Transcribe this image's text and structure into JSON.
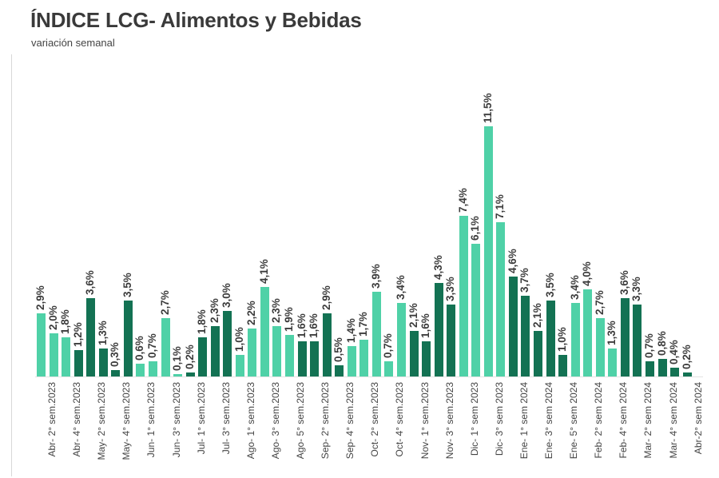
{
  "header": {
    "title": "ÍNDICE LCG- Alimentos y Bebidas",
    "subtitle": "variación semanal"
  },
  "colors": {
    "light": "#4fd1a7",
    "dark": "#137253",
    "label": "#3c3c3c"
  },
  "chart_data": {
    "type": "bar",
    "title": "ÍNDICE LCG- Alimentos y Bebidas",
    "subtitle": "variación semanal",
    "xlabel": "",
    "ylabel": "",
    "ylim": [
      0,
      12
    ],
    "grid": false,
    "legend": "none",
    "value_format": "percent, comma decimal",
    "categories_labeled": [
      "Abr- 2° sem.2023",
      "Abr- 4° sem.2023",
      "May- 2° sem.2023",
      "May- 4° sem.2023",
      "Jun- 1° sem.2023",
      "Jun- 3° sem.2023",
      "Jul- 1° sem.2023",
      "Jul- 3° sem.2023",
      "Ago- 1° sem.2023",
      "Ago- 3° sem.2023",
      "Ago- 5° sem.2023",
      "Sep- 2° sem.2023",
      "Sep- 4° sem.2023",
      "Oct- 2° sem.2023",
      "Oct- 4° sem.2023",
      "Nov- 1° sem.2023",
      "Nov- 3° sem.2023",
      "Dic- 1° sem 2023",
      "Dic- 3° sem 2023",
      "Ene- 1° sem 2024",
      "Ene- 3° sem 2024",
      "Ene- 5° sem 2024",
      "Feb- 2° sem 2024",
      "Feb- 4° sem 2024",
      "Mar- 2° sem 2024",
      "Mar- 4° sem 2024",
      "Abr-2° sem 2024"
    ],
    "values": [
      2.9,
      2.0,
      1.8,
      1.2,
      3.6,
      1.3,
      0.3,
      3.5,
      0.6,
      0.7,
      2.7,
      0.1,
      0.2,
      1.8,
      2.3,
      3.0,
      1.0,
      2.2,
      4.1,
      2.3,
      1.9,
      1.6,
      1.6,
      2.9,
      0.5,
      1.4,
      1.7,
      3.9,
      0.7,
      3.4,
      2.1,
      1.6,
      4.3,
      3.3,
      7.4,
      6.1,
      11.5,
      7.1,
      4.6,
      3.7,
      2.1,
      3.5,
      1.0,
      3.4,
      4.0,
      2.7,
      1.3,
      3.6,
      3.3,
      0.7,
      0.8,
      0.4,
      0.2
    ],
    "value_labels": [
      "2,9%",
      "2,0%",
      "1,8%",
      "1,2%",
      "3,6%",
      "1,3%",
      "0,3%",
      "3,5%",
      "0,6%",
      "0,7%",
      "2,7%",
      "0,1%",
      "0,2%",
      "1,8%",
      "2,3%",
      "3,0%",
      "1,0%",
      "2,2%",
      "4,1%",
      "2,3%",
      "1,9%",
      "1,6%",
      "1,6%",
      "2,9%",
      "0,5%",
      "1,4%",
      "1,7%",
      "3,9%",
      "0,7%",
      "3,4%",
      "2,1%",
      "1,6%",
      "4,3%",
      "3,3%",
      "7,4%",
      "6,1%",
      "11,5%",
      "7,1%",
      "4,6%",
      "3,7%",
      "2,1%",
      "3,5%",
      "1,0%",
      "3,4%",
      "4,0%",
      "2,7%",
      "1,3%",
      "3,6%",
      "3,3%",
      "0,7%",
      "0,8%",
      "0,4%",
      "0,2%"
    ],
    "bar_shade": [
      "L",
      "L",
      "L",
      "D",
      "D",
      "D",
      "D",
      "D",
      "L",
      "L",
      "L",
      "L",
      "D",
      "D",
      "D",
      "D",
      "L",
      "L",
      "L",
      "L",
      "L",
      "D",
      "D",
      "D",
      "D",
      "L",
      "L",
      "L",
      "L",
      "L",
      "D",
      "D",
      "D",
      "D",
      "L",
      "L",
      "L",
      "L",
      "D",
      "D",
      "D",
      "D",
      "D",
      "L",
      "L",
      "L",
      "L",
      "D",
      "D",
      "D",
      "D",
      "D",
      "D"
    ]
  }
}
